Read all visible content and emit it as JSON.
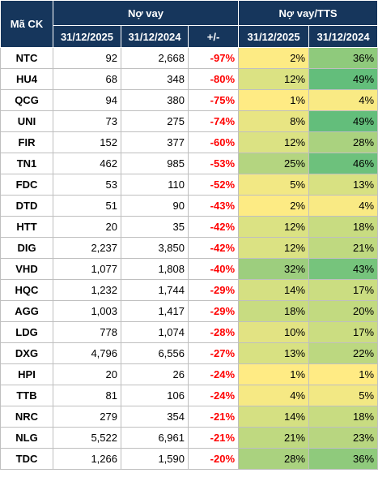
{
  "header": {
    "ticker": "Mã CK",
    "debt_group": "Nợ vay",
    "ratio_group": "Nợ vay/TTS",
    "date_2025": "31/12/2025",
    "date_2024": "31/12/2024",
    "change": "+/-",
    "ratio_date_2025": "31/12/2025",
    "ratio_date_2024": "31/12/2024"
  },
  "rows": [
    {
      "ticker": "NTC",
      "debt_2025": "92",
      "debt_2024": "2,668",
      "change": "-97%",
      "ratio_2025": "2%",
      "ratio_2024": "36%",
      "color_2025": "#fdeb84",
      "color_2024": "#8fca7c"
    },
    {
      "ticker": "HU4",
      "debt_2025": "68",
      "debt_2024": "348",
      "change": "-80%",
      "ratio_2025": "12%",
      "ratio_2024": "49%",
      "color_2025": "#dbe283",
      "color_2024": "#63be7b"
    },
    {
      "ticker": "QCG",
      "debt_2025": "94",
      "debt_2024": "380",
      "change": "-75%",
      "ratio_2025": "1%",
      "ratio_2024": "4%",
      "color_2025": "#ffeb84",
      "color_2024": "#f9ea84"
    },
    {
      "ticker": "UNI",
      "debt_2025": "73",
      "debt_2024": "275",
      "change": "-74%",
      "ratio_2025": "8%",
      "ratio_2024": "49%",
      "color_2025": "#e8e583",
      "color_2024": "#63be7b"
    },
    {
      "ticker": "FIR",
      "debt_2025": "152",
      "debt_2024": "377",
      "change": "-60%",
      "ratio_2025": "12%",
      "ratio_2024": "28%",
      "color_2025": "#dbe283",
      "color_2024": "#aad27f"
    },
    {
      "ticker": "TN1",
      "debt_2025": "462",
      "debt_2024": "985",
      "change": "-53%",
      "ratio_2025": "25%",
      "ratio_2024": "46%",
      "color_2025": "#b4d580",
      "color_2024": "#6dc17c"
    },
    {
      "ticker": "FDC",
      "debt_2025": "53",
      "debt_2024": "110",
      "change": "-52%",
      "ratio_2025": "5%",
      "ratio_2024": "13%",
      "color_2025": "#f2e884",
      "color_2024": "#d8e182"
    },
    {
      "ticker": "DTD",
      "debt_2025": "51",
      "debt_2024": "90",
      "change": "-43%",
      "ratio_2025": "2%",
      "ratio_2024": "4%",
      "color_2025": "#fdeb84",
      "color_2024": "#f9ea84"
    },
    {
      "ticker": "HTT",
      "debt_2025": "20",
      "debt_2024": "35",
      "change": "-42%",
      "ratio_2025": "12%",
      "ratio_2024": "18%",
      "color_2025": "#dbe283",
      "color_2024": "#c8dc81"
    },
    {
      "ticker": "DIG",
      "debt_2025": "2,237",
      "debt_2024": "3,850",
      "change": "-42%",
      "ratio_2025": "12%",
      "ratio_2024": "21%",
      "color_2025": "#dbe283",
      "color_2024": "#bfd980"
    },
    {
      "ticker": "VHD",
      "debt_2025": "1,077",
      "debt_2024": "1,808",
      "change": "-40%",
      "ratio_2025": "32%",
      "ratio_2024": "43%",
      "color_2025": "#9dce7e",
      "color_2024": "#76c47c"
    },
    {
      "ticker": "HQC",
      "debt_2025": "1,232",
      "debt_2024": "1,744",
      "change": "-29%",
      "ratio_2025": "14%",
      "ratio_2024": "17%",
      "color_2025": "#d5e082",
      "color_2024": "#cbdd81"
    },
    {
      "ticker": "AGG",
      "debt_2025": "1,003",
      "debt_2024": "1,417",
      "change": "-29%",
      "ratio_2025": "18%",
      "ratio_2024": "20%",
      "color_2025": "#c8dc81",
      "color_2024": "#c2da80"
    },
    {
      "ticker": "LDG",
      "debt_2025": "778",
      "debt_2024": "1,074",
      "change": "-28%",
      "ratio_2025": "10%",
      "ratio_2024": "17%",
      "color_2025": "#e2e383",
      "color_2024": "#cbdd81"
    },
    {
      "ticker": "DXG",
      "debt_2025": "4,796",
      "debt_2024": "6,556",
      "change": "-27%",
      "ratio_2025": "13%",
      "ratio_2024": "22%",
      "color_2025": "#d8e182",
      "color_2024": "#bcd880"
    },
    {
      "ticker": "HPI",
      "debt_2025": "20",
      "debt_2024": "26",
      "change": "-24%",
      "ratio_2025": "1%",
      "ratio_2024": "1%",
      "color_2025": "#ffeb84",
      "color_2024": "#ffeb84"
    },
    {
      "ticker": "TTB",
      "debt_2025": "81",
      "debt_2024": "106",
      "change": "-24%",
      "ratio_2025": "4%",
      "ratio_2024": "5%",
      "color_2025": "#f6e984",
      "color_2024": "#f2e884"
    },
    {
      "ticker": "NRC",
      "debt_2025": "279",
      "debt_2024": "354",
      "change": "-21%",
      "ratio_2025": "14%",
      "ratio_2024": "18%",
      "color_2025": "#d5e082",
      "color_2024": "#c8dc81"
    },
    {
      "ticker": "NLG",
      "debt_2025": "5,522",
      "debt_2024": "6,961",
      "change": "-21%",
      "ratio_2025": "21%",
      "ratio_2024": "23%",
      "color_2025": "#bfd980",
      "color_2024": "#b8d680"
    },
    {
      "ticker": "TDC",
      "debt_2025": "1,266",
      "debt_2024": "1,590",
      "change": "-20%",
      "ratio_2025": "28%",
      "ratio_2024": "36%",
      "color_2025": "#aad27f",
      "color_2024": "#8fca7c"
    }
  ],
  "colors": {
    "header_bg": "#16365c",
    "header_text": "#ffffff",
    "negative_change": "#ff0000"
  }
}
